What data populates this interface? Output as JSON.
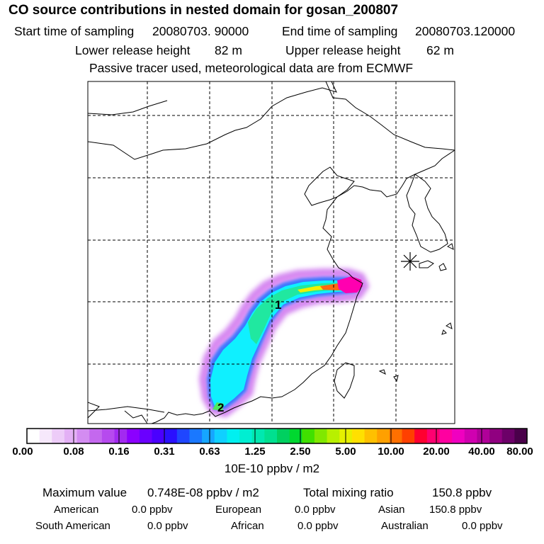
{
  "header": {
    "title": "CO  source contributions in nested domain for gosan_200807",
    "start_label": "Start time of sampling",
    "start_value": "20080703. 90000",
    "end_label": "End time of sampling",
    "end_value": "20080703.120000",
    "lower_label": "Lower release height",
    "lower_value": "82 m",
    "upper_label": "Upper release height",
    "upper_value": "62 m",
    "note": "Passive tracer used, meteorological data are from ECMWF"
  },
  "map": {
    "markers": [
      "1",
      "2"
    ],
    "receptor_icon": "asterisk-receptor-icon"
  },
  "colorbar": {
    "tick_labels": [
      "0.00",
      "0.08",
      "0.16",
      "0.31",
      "0.63",
      "1.25",
      "2.50",
      "5.00",
      "10.00",
      "20.00",
      "40.00",
      "80.00"
    ],
    "colors": [
      "#ffffff",
      "#f6e8fb",
      "#edccf8",
      "#e3b0f5",
      "#d38cf1",
      "#c468ee",
      "#b64aee",
      "#a22af0",
      "#8b00ff",
      "#6a00ff",
      "#4a00ff",
      "#2a10ff",
      "#1f46ff",
      "#1a78ff",
      "#16a6ff",
      "#10d0ff",
      "#00f0f0",
      "#00eed2",
      "#00e8b0",
      "#00e090",
      "#00d060",
      "#00d830",
      "#40e000",
      "#80e800",
      "#b8f000",
      "#e6f000",
      "#ffe000",
      "#ffc000",
      "#ffa000",
      "#ff7000",
      "#ff4000",
      "#ff0030",
      "#ff0070",
      "#ff00a0",
      "#f000c0",
      "#d000b0",
      "#b00098",
      "#900080",
      "#6c0068",
      "#4a004a"
    ],
    "unit": "10E-10 ppbv / m2"
  },
  "stats": {
    "max_label": "Maximum value",
    "max_value": "0.748E-08 ppbv / m2",
    "total_label": "Total mixing ratio",
    "total_value": "150.8 ppbv",
    "regions": [
      {
        "name": "American",
        "value": "0.0 ppbv"
      },
      {
        "name": "European",
        "value": "0.0 ppbv"
      },
      {
        "name": "Asian",
        "value": "150.8 ppbv"
      },
      {
        "name": "South American",
        "value": "0.0 ppbv"
      },
      {
        "name": "African",
        "value": "0.0 ppbv"
      },
      {
        "name": "Australian",
        "value": "0.0 ppbv"
      }
    ]
  }
}
